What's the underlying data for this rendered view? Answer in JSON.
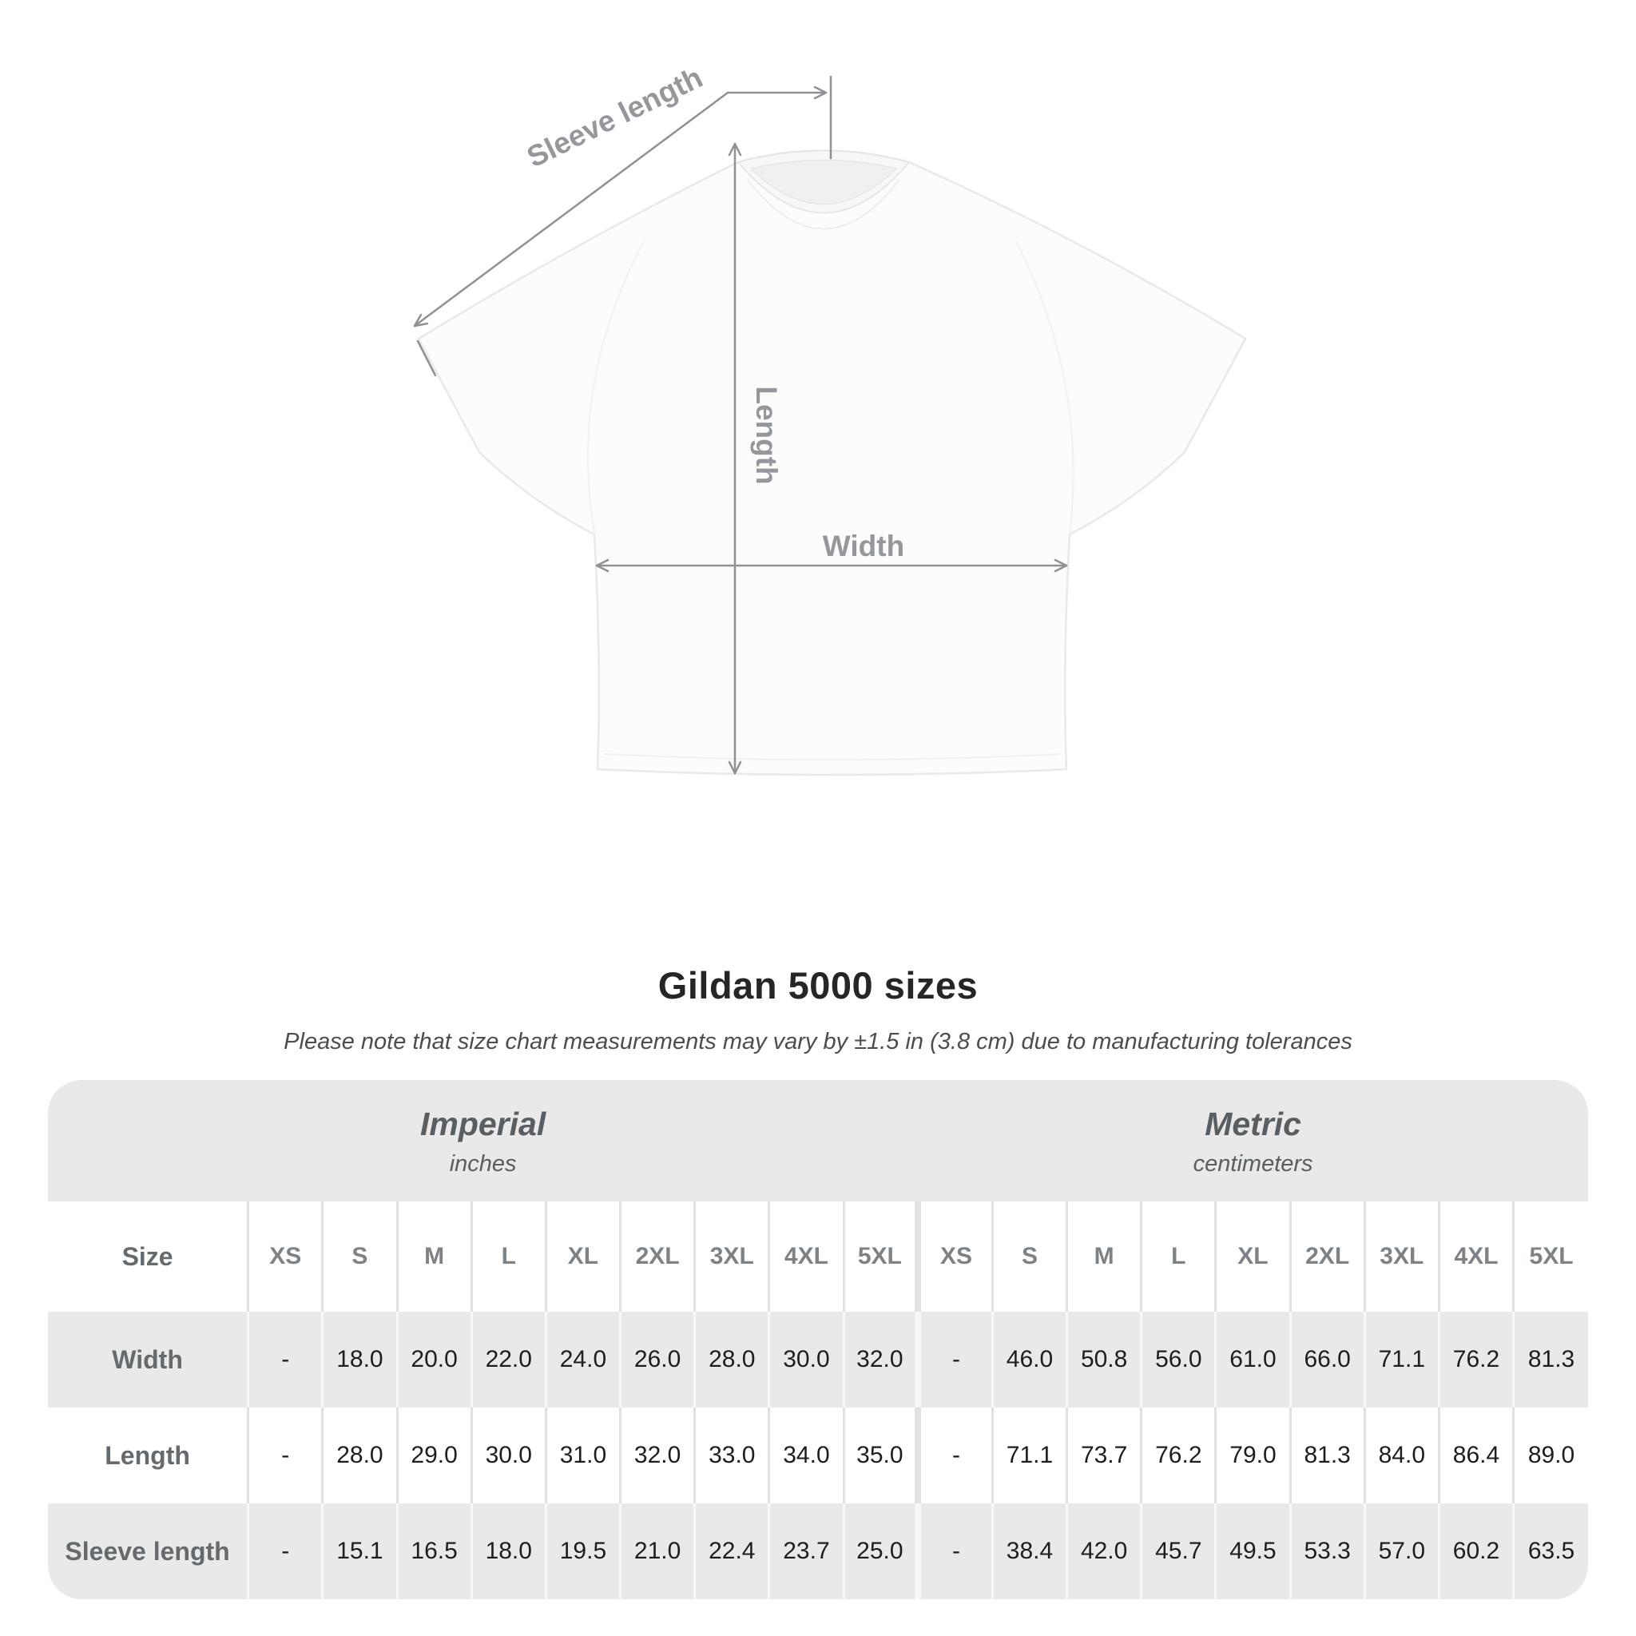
{
  "diagram": {
    "sleeve_length_label": "Sleeve length",
    "length_label": "Length",
    "width_label": "Width"
  },
  "title": "Gildan 5000 sizes",
  "subtitle": "Please note that size chart measurements may vary by ±1.5 in (3.8 cm) due to manufacturing tolerances",
  "table": {
    "unit_groups": [
      {
        "name": "Imperial",
        "unit": "inches"
      },
      {
        "name": "Metric",
        "unit": "centimeters"
      }
    ],
    "size_label": "Size",
    "sizes": [
      "XS",
      "S",
      "M",
      "L",
      "XL",
      "2XL",
      "3XL",
      "4XL",
      "5XL"
    ],
    "rows": [
      {
        "label": "Width",
        "imperial": [
          "-",
          "18.0",
          "20.0",
          "22.0",
          "24.0",
          "26.0",
          "28.0",
          "30.0",
          "32.0"
        ],
        "metric": [
          "-",
          "46.0",
          "50.8",
          "56.0",
          "61.0",
          "66.0",
          "71.1",
          "76.2",
          "81.3"
        ]
      },
      {
        "label": "Length",
        "imperial": [
          "-",
          "28.0",
          "29.0",
          "30.0",
          "31.0",
          "32.0",
          "33.0",
          "34.0",
          "35.0"
        ],
        "metric": [
          "-",
          "71.1",
          "73.7",
          "76.2",
          "79.0",
          "81.3",
          "84.0",
          "86.4",
          "89.0"
        ]
      },
      {
        "label": "Sleeve length",
        "imperial": [
          "-",
          "15.1",
          "16.5",
          "18.0",
          "19.5",
          "21.0",
          "22.4",
          "23.7",
          "25.0"
        ],
        "metric": [
          "-",
          "38.4",
          "42.0",
          "45.7",
          "49.5",
          "53.3",
          "57.0",
          "60.2",
          "63.5"
        ]
      }
    ]
  },
  "chart_data": {
    "type": "table",
    "title": "Gildan 5000 sizes",
    "note": "Please note that size chart measurements may vary by ±1.5 in (3.8 cm) due to manufacturing tolerances",
    "column_groups": [
      "Imperial (inches)",
      "Metric (centimeters)"
    ],
    "columns": [
      "Size",
      "XS",
      "S",
      "M",
      "L",
      "XL",
      "2XL",
      "3XL",
      "4XL",
      "5XL",
      "XS",
      "S",
      "M",
      "L",
      "XL",
      "2XL",
      "3XL",
      "4XL",
      "5XL"
    ],
    "rows": [
      [
        "Width",
        "-",
        "18.0",
        "20.0",
        "22.0",
        "24.0",
        "26.0",
        "28.0",
        "30.0",
        "32.0",
        "-",
        "46.0",
        "50.8",
        "56.0",
        "61.0",
        "66.0",
        "71.1",
        "76.2",
        "81.3"
      ],
      [
        "Length",
        "-",
        "28.0",
        "29.0",
        "30.0",
        "31.0",
        "32.0",
        "33.0",
        "34.0",
        "35.0",
        "-",
        "71.1",
        "73.7",
        "76.2",
        "79.0",
        "81.3",
        "84.0",
        "86.4",
        "89.0"
      ],
      [
        "Sleeve length",
        "-",
        "15.1",
        "16.5",
        "18.0",
        "19.5",
        "21.0",
        "22.4",
        "23.7",
        "25.0",
        "-",
        "38.4",
        "42.0",
        "45.7",
        "49.5",
        "53.3",
        "57.0",
        "60.2",
        "63.5"
      ]
    ]
  },
  "colors": {
    "table_band_gray": "#e9e9e9",
    "heading_text": "#262626",
    "muted_label_gray": "#646a6e",
    "diagram_arrow_gray": "#8e9296",
    "value_text": "#1e1e1e"
  }
}
